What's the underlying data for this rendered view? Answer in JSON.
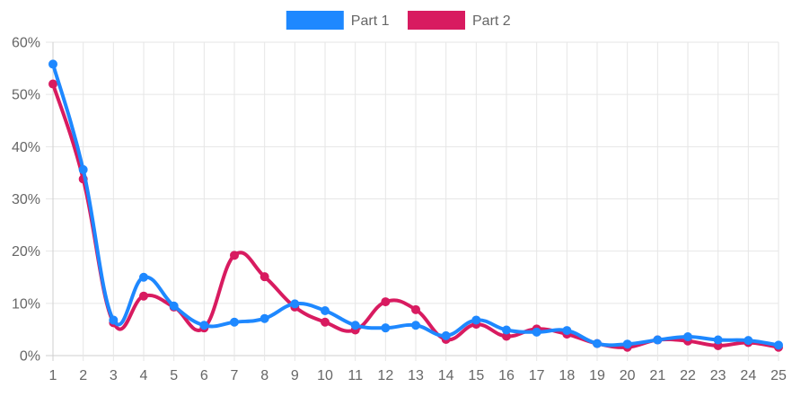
{
  "chart_data": {
    "type": "line",
    "categories": [
      "1",
      "2",
      "3",
      "4",
      "5",
      "6",
      "7",
      "8",
      "9",
      "10",
      "11",
      "12",
      "13",
      "14",
      "15",
      "16",
      "17",
      "18",
      "19",
      "20",
      "21",
      "22",
      "23",
      "24",
      "25"
    ],
    "series": [
      {
        "name": "Part 1",
        "color": "#1e88ff",
        "values": [
          55.8,
          35.6,
          6.8,
          15.0,
          9.5,
          5.8,
          6.4,
          7.1,
          9.9,
          8.6,
          5.8,
          5.3,
          5.8,
          3.8,
          6.8,
          4.9,
          4.5,
          4.8,
          2.3,
          2.2,
          3.0,
          3.6,
          3.0,
          2.9,
          2.0
        ]
      },
      {
        "name": "Part 2",
        "color": "#d81b60",
        "values": [
          52.0,
          33.8,
          6.3,
          11.4,
          9.3,
          5.3,
          19.2,
          15.1,
          9.3,
          6.4,
          4.9,
          10.3,
          8.8,
          3.1,
          6.0,
          3.7,
          5.1,
          4.1,
          2.3,
          1.6,
          3.0,
          2.8,
          1.9,
          2.5,
          1.6
        ]
      }
    ],
    "ylim": [
      0,
      60
    ],
    "yticks": [
      0,
      10,
      20,
      30,
      40,
      50,
      60
    ],
    "ytick_labels": [
      "0%",
      "10%",
      "20%",
      "30%",
      "40%",
      "50%",
      "60%"
    ],
    "grid": true,
    "legend": "top-center"
  }
}
